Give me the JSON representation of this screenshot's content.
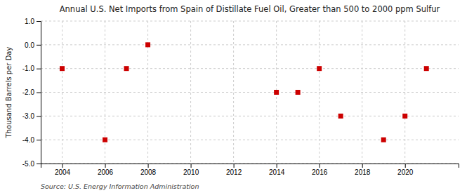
{
  "chart_data": {
    "type": "scatter",
    "title": "Annual U.S. Net Imports from Spain of Distillate Fuel Oil, Greater than 500 to 2000 ppm Sulfur",
    "ylabel": "Thousand Barrels per Day",
    "annotations": [
      "Source: U.S. Energy Information Administration"
    ],
    "x": [
      2004,
      2006,
      2007,
      2008,
      2014,
      2015,
      2016,
      2017,
      2019,
      2020,
      2021
    ],
    "values": [
      -1.0,
      -4.0,
      -1.0,
      0.0,
      -2.0,
      -2.0,
      -1.0,
      -3.0,
      -4.0,
      -3.0,
      -1.0
    ],
    "color": "#cc0000",
    "marker": "square",
    "xlim": [
      2003.0,
      2022.5
    ],
    "ylim": [
      -5.0,
      1.0
    ],
    "xticks": [
      2004,
      2006,
      2008,
      2010,
      2012,
      2014,
      2016,
      2018,
      2020
    ],
    "yticks": [
      {
        "value": 1.0,
        "label": "1.0"
      },
      {
        "value": 0.0,
        "label": "0.0"
      },
      {
        "value": -1.0,
        "label": "-1.0"
      },
      {
        "value": -2.0,
        "label": "-2.0"
      },
      {
        "value": -3.0,
        "label": "-3.0"
      },
      {
        "value": -4.0,
        "label": "-4.0"
      },
      {
        "value": -5.0,
        "label": "-5.0"
      }
    ],
    "grid": true
  }
}
